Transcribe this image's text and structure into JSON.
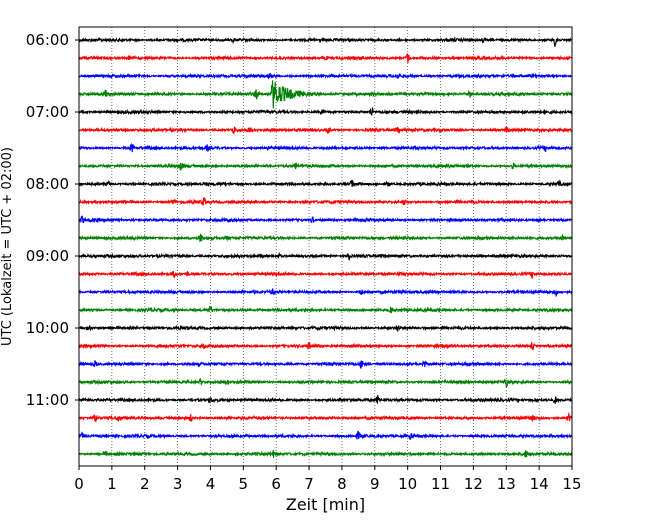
{
  "chart_data": {
    "type": "line",
    "title": "",
    "xlabel": "Zeit  [min]",
    "ylabel": "UTC (Lokalzeit = UTC + 02:00)",
    "xlim": [
      0,
      15
    ],
    "x_ticks": [
      "0",
      "1",
      "2",
      "3",
      "4",
      "5",
      "6",
      "7",
      "8",
      "9",
      "10",
      "11",
      "12",
      "13",
      "14",
      "15"
    ],
    "y_tick_labels": [
      "06:00",
      "07:00",
      "08:00",
      "09:00",
      "10:00",
      "11:00"
    ],
    "grid": "vertical dotted lines at each minute",
    "trace_interval_minutes": 15,
    "start_time_utc": "06:00",
    "traces": [
      {
        "start": "06:00",
        "color": "#000000",
        "events": [
          {
            "t": 14.5,
            "amp": 1.0
          },
          {
            "t": 4.7,
            "amp": 0.25
          },
          {
            "t": 12.3,
            "amp": 0.25
          },
          {
            "t": 1.3,
            "amp": 0.2
          }
        ]
      },
      {
        "start": "06:15",
        "color": "#ff0000",
        "events": [
          {
            "t": 10.0,
            "amp": 0.7
          },
          {
            "t": 7.5,
            "amp": 0.3
          },
          {
            "t": 1.5,
            "amp": 0.3
          }
        ]
      },
      {
        "start": "06:30",
        "color": "#0000ff",
        "events": [
          {
            "t": 9.7,
            "amp": 0.45
          },
          {
            "t": 5.8,
            "amp": 0.25
          }
        ]
      },
      {
        "start": "06:45",
        "color": "#008000",
        "events": [
          {
            "t": 5.9,
            "amp": 2.0,
            "decay": 1.2
          },
          {
            "t": 5.4,
            "amp": 0.6
          },
          {
            "t": 0.8,
            "amp": 0.55
          },
          {
            "t": 11.9,
            "amp": 0.5
          }
        ]
      },
      {
        "start": "07:00",
        "color": "#000000",
        "events": [
          {
            "t": 8.9,
            "amp": 0.6
          },
          {
            "t": 7.4,
            "amp": 0.3
          },
          {
            "t": 14.2,
            "amp": 0.3
          }
        ]
      },
      {
        "start": "07:15",
        "color": "#ff0000",
        "events": [
          {
            "t": 4.7,
            "amp": 0.5
          },
          {
            "t": 5.2,
            "amp": 0.35
          },
          {
            "t": 7.6,
            "amp": 0.45
          },
          {
            "t": 9.7,
            "amp": 0.5
          },
          {
            "t": 13.0,
            "amp": 0.3
          }
        ]
      },
      {
        "start": "07:30",
        "color": "#0000ff",
        "events": [
          {
            "t": 1.6,
            "amp": 0.55
          },
          {
            "t": 3.9,
            "amp": 0.4
          },
          {
            "t": 14.2,
            "amp": 0.35
          }
        ]
      },
      {
        "start": "07:45",
        "color": "#008000",
        "events": [
          {
            "t": 3.1,
            "amp": 0.5
          },
          {
            "t": 6.6,
            "amp": 0.45
          },
          {
            "t": 13.2,
            "amp": 0.4
          }
        ]
      },
      {
        "start": "08:00",
        "color": "#000000",
        "events": [
          {
            "t": 8.3,
            "amp": 0.45
          },
          {
            "t": 9.4,
            "amp": 0.4
          },
          {
            "t": 14.6,
            "amp": 0.4
          },
          {
            "t": 0.9,
            "amp": 0.3
          }
        ]
      },
      {
        "start": "08:15",
        "color": "#ff0000",
        "events": [
          {
            "t": 2.9,
            "amp": 0.4
          },
          {
            "t": 3.8,
            "amp": 0.55
          },
          {
            "t": 9.9,
            "amp": 0.35
          }
        ]
      },
      {
        "start": "08:30",
        "color": "#0000ff",
        "events": [
          {
            "t": 0.1,
            "amp": 0.5
          },
          {
            "t": 7.1,
            "amp": 0.35
          },
          {
            "t": 14.0,
            "amp": 0.35
          }
        ]
      },
      {
        "start": "08:45",
        "color": "#008000",
        "events": [
          {
            "t": 3.7,
            "amp": 0.5
          },
          {
            "t": 14.7,
            "amp": 0.45
          },
          {
            "t": 4.5,
            "amp": 0.25
          }
        ]
      },
      {
        "start": "09:00",
        "color": "#000000",
        "events": [
          {
            "t": 8.2,
            "amp": 0.8
          },
          {
            "t": 6.1,
            "amp": 0.3
          }
        ]
      },
      {
        "start": "09:15",
        "color": "#ff0000",
        "events": [
          {
            "t": 2.9,
            "amp": 0.5
          },
          {
            "t": 3.3,
            "amp": 0.35
          },
          {
            "t": 13.8,
            "amp": 0.5
          }
        ]
      },
      {
        "start": "09:30",
        "color": "#0000ff",
        "events": [
          {
            "t": 8.6,
            "amp": 0.45
          },
          {
            "t": 14.5,
            "amp": 0.5
          },
          {
            "t": 5.9,
            "amp": 0.3
          }
        ]
      },
      {
        "start": "09:45",
        "color": "#008000",
        "events": [
          {
            "t": 4.0,
            "amp": 0.5
          },
          {
            "t": 9.5,
            "amp": 0.4
          }
        ]
      },
      {
        "start": "10:00",
        "color": "#000000",
        "events": [
          {
            "t": 0.3,
            "amp": 0.5
          },
          {
            "t": 9.7,
            "amp": 0.45
          }
        ]
      },
      {
        "start": "10:15",
        "color": "#ff0000",
        "events": [
          {
            "t": 7.0,
            "amp": 0.45
          },
          {
            "t": 3.8,
            "amp": 0.35
          },
          {
            "t": 13.8,
            "amp": 0.5
          }
        ]
      },
      {
        "start": "10:30",
        "color": "#0000ff",
        "events": [
          {
            "t": 0.5,
            "amp": 0.45
          },
          {
            "t": 8.6,
            "amp": 0.6
          },
          {
            "t": 10.5,
            "amp": 0.45
          }
        ]
      },
      {
        "start": "10:45",
        "color": "#008000",
        "events": [
          {
            "t": 13.0,
            "amp": 0.6
          },
          {
            "t": 3.7,
            "amp": 0.35
          },
          {
            "t": 4.5,
            "amp": 0.3
          }
        ]
      },
      {
        "start": "11:00",
        "color": "#000000",
        "events": [
          {
            "t": 9.1,
            "amp": 0.6
          },
          {
            "t": 14.5,
            "amp": 0.45
          },
          {
            "t": 4.0,
            "amp": 0.3
          }
        ]
      },
      {
        "start": "11:15",
        "color": "#ff0000",
        "events": [
          {
            "t": 0.5,
            "amp": 0.6
          },
          {
            "t": 1.2,
            "amp": 0.4
          },
          {
            "t": 14.9,
            "amp": 0.55
          },
          {
            "t": 3.4,
            "amp": 0.4
          },
          {
            "t": 13.8,
            "amp": 0.35
          }
        ]
      },
      {
        "start": "11:30",
        "color": "#0000ff",
        "events": [
          {
            "t": 8.5,
            "amp": 0.5
          },
          {
            "t": 10.1,
            "amp": 0.35
          },
          {
            "t": 0.1,
            "amp": 0.4
          }
        ]
      },
      {
        "start": "11:45",
        "color": "#008000",
        "events": [
          {
            "t": 5.9,
            "amp": 0.45
          },
          {
            "t": 13.6,
            "amp": 0.4
          },
          {
            "t": 0.8,
            "amp": 0.3
          }
        ]
      }
    ]
  }
}
